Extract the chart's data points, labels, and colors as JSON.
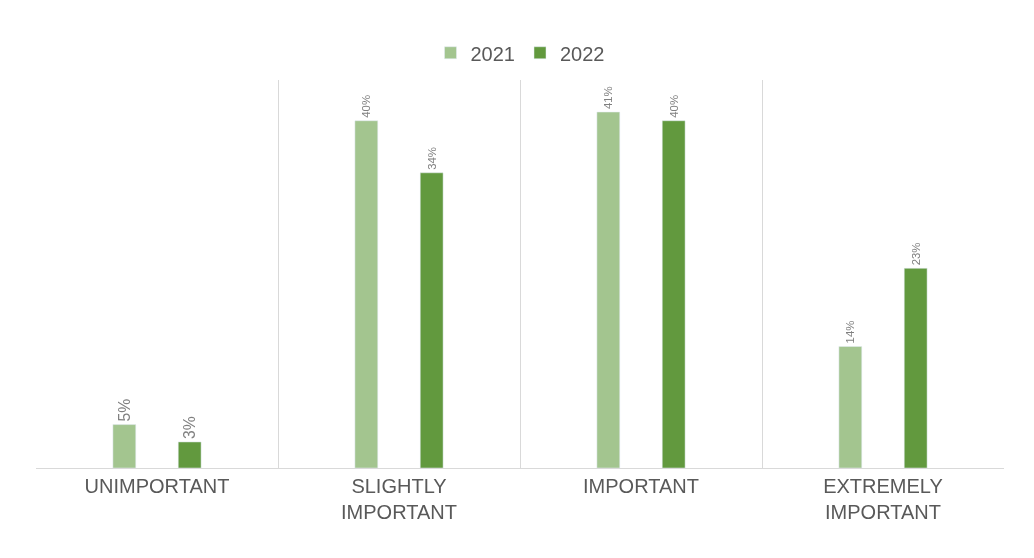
{
  "chart_data": {
    "type": "bar",
    "categories": [
      "UNIMPORTANT",
      "SLIGHTLY IMPORTANT",
      "IMPORTANT",
      "EXTREMELY IMPORTANT"
    ],
    "series": [
      {
        "name": "2021",
        "color": "#a3c58f",
        "values": [
          5,
          40,
          41,
          14
        ],
        "value_labels": [
          "5%",
          "40%",
          "41%",
          "14%"
        ]
      },
      {
        "name": "2022",
        "color": "#62993e",
        "values": [
          3,
          34,
          40,
          23
        ],
        "value_labels": [
          "3%",
          "34%",
          "40%",
          "23%"
        ]
      }
    ],
    "legend": "top",
    "grid": "x"
  }
}
